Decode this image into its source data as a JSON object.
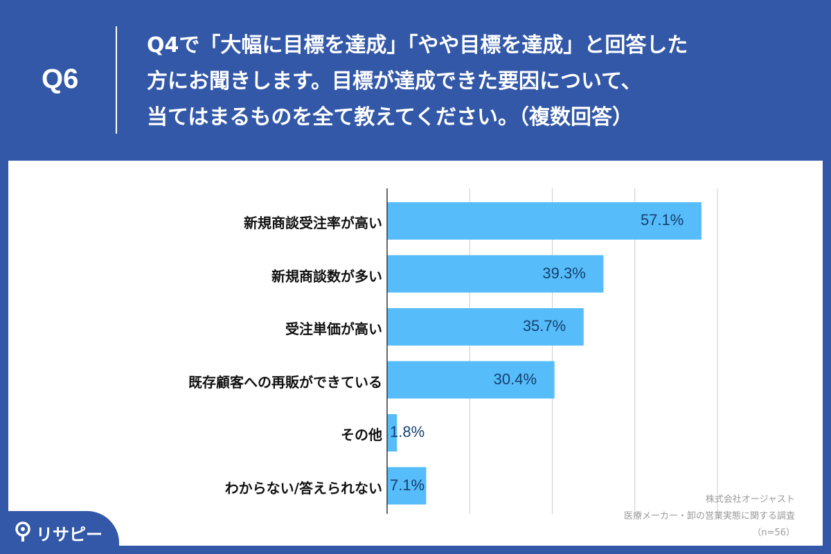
{
  "header": {
    "qnum": "Q6",
    "question_lines": [
      "Q4で「大幅に目標を達成」「やや目標を達成」と回答した",
      "方にお聞きします。目標が達成できた要因について、",
      "当てはまるものを全て教えてください。（複数回答）"
    ]
  },
  "chart_data": {
    "type": "bar",
    "orientation": "horizontal",
    "categories": [
      "新規商談受注率が高い",
      "新規商談数が多い",
      "受注単価が高い",
      "既存顧客への再販ができている",
      "その他",
      "わからない/答えられない"
    ],
    "values": [
      57.1,
      39.3,
      35.7,
      30.4,
      1.8,
      7.1
    ],
    "value_labels": [
      "57.1%",
      "39.3%",
      "35.7%",
      "30.4%",
      "1.8%",
      "7.1%"
    ],
    "xlim": [
      0,
      60
    ],
    "grid": true,
    "bar_color": "#56bcfa"
  },
  "footer": {
    "company": "株式会社オージャスト",
    "survey": "医療メーカー・卸の営業実態に関する調査",
    "n": "（n=56）"
  },
  "logo": {
    "text": "リサピー",
    "icon": "pin-icon"
  }
}
